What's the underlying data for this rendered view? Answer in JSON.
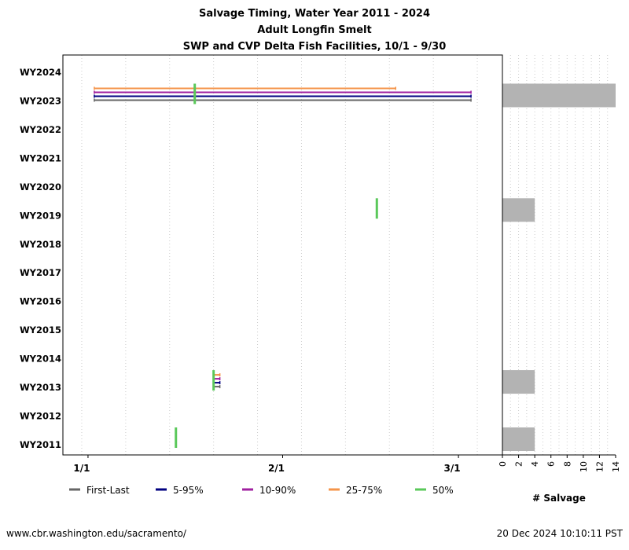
{
  "titles": [
    "Salvage Timing, Water Year 2011 - 2024",
    "Adult Longfin Smelt",
    "SWP and CVP Delta Fish Facilities, 10/1 - 9/30"
  ],
  "footer_left": "www.cbr.washington.edu/sacramento/",
  "footer_right": "20 Dec 2024 10:10:11 PST",
  "colors": {
    "first_last": "#666666",
    "p5_95": "#000080",
    "p10_90": "#a020a0",
    "p25_75": "#f4944a",
    "p50": "#5ac85a",
    "salvage_bar": "#b3b3b3",
    "grid": "#cccccc"
  },
  "chart_data": [
    {
      "type": "timeline",
      "x_ticks": [
        "1/1",
        "2/1",
        "3/1"
      ],
      "x_tick_days": [
        0,
        31,
        59
      ],
      "xlim_days": [
        -4,
        66
      ],
      "categories": [
        "WY2011",
        "WY2012",
        "WY2013",
        "WY2014",
        "WY2015",
        "WY2016",
        "WY2017",
        "WY2018",
        "WY2019",
        "WY2020",
        "WY2021",
        "WY2022",
        "WY2023",
        "WY2024"
      ],
      "legend": [
        {
          "key": "first_last",
          "label": "First-Last"
        },
        {
          "key": "p5_95",
          "label": "5-95%"
        },
        {
          "key": "p10_90",
          "label": "10-90%"
        },
        {
          "key": "p25_75",
          "label": "25-75%"
        },
        {
          "key": "p50",
          "label": "50%"
        }
      ],
      "series": [
        {
          "year": "WY2011",
          "p50": 14
        },
        {
          "year": "WY2013",
          "first_last": [
            20,
            21
          ],
          "p5_95": [
            20,
            21
          ],
          "p10_90": [
            20,
            21
          ],
          "p25_75": [
            20,
            21
          ],
          "p50": 20
        },
        {
          "year": "WY2019",
          "p50": 46
        },
        {
          "year": "WY2023",
          "first_last": [
            1,
            61
          ],
          "p5_95": [
            1,
            61
          ],
          "p10_90": [
            1,
            61
          ],
          "p25_75": [
            1,
            49
          ],
          "p50": 17
        }
      ]
    },
    {
      "type": "bar",
      "orientation": "horizontal",
      "xlabel": "# Salvage",
      "x_ticks": [
        "0",
        "2",
        "4",
        "6",
        "8",
        "10",
        "12",
        "14"
      ],
      "xlim": [
        0,
        14
      ],
      "categories": [
        "WY2011",
        "WY2012",
        "WY2013",
        "WY2014",
        "WY2015",
        "WY2016",
        "WY2017",
        "WY2018",
        "WY2019",
        "WY2020",
        "WY2021",
        "WY2022",
        "WY2023",
        "WY2024"
      ],
      "values": [
        4,
        0,
        4,
        0,
        0,
        0,
        0,
        0,
        4,
        0,
        0,
        0,
        14,
        0
      ]
    }
  ]
}
